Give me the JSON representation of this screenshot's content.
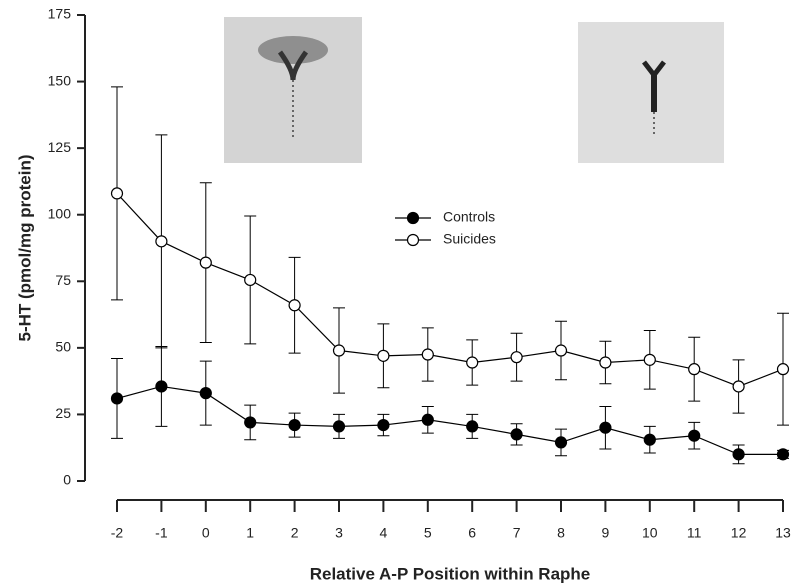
{
  "chart_data": {
    "type": "line",
    "x_label": "Relative A-P Position within Raphe",
    "y_label": "5-HT (pmol/mg protein)",
    "x": [
      -2,
      -1,
      0,
      1,
      2,
      3,
      4,
      5,
      6,
      7,
      8,
      9,
      10,
      11,
      12,
      13
    ],
    "xlim": [
      -2,
      13
    ],
    "xticks": [
      -2,
      -1,
      0,
      1,
      2,
      3,
      4,
      5,
      6,
      7,
      8,
      9,
      10,
      11,
      12,
      13
    ],
    "ylim": [
      0,
      175
    ],
    "yticks": [
      0,
      25,
      50,
      75,
      100,
      125,
      150,
      175
    ],
    "legend": "upper center",
    "series": [
      {
        "name": "Controls",
        "color": "#000000",
        "marker_fill": "#000000",
        "values": [
          31,
          35.5,
          33,
          22,
          21,
          20.5,
          21,
          23,
          20.5,
          17.5,
          14.5,
          20,
          15.5,
          17,
          10,
          10
        ],
        "errors": [
          15,
          15,
          12,
          6.5,
          4.5,
          4.5,
          4,
          5,
          4.5,
          4,
          5,
          8,
          5,
          5,
          3.5,
          1.5
        ]
      },
      {
        "name": "Suicides",
        "color": "#000000",
        "marker_fill": "#ffffff",
        "values": [
          108,
          90,
          82,
          75.5,
          66,
          49,
          47,
          47.5,
          44.5,
          46.5,
          49,
          44.5,
          45.5,
          42,
          35.5,
          42
        ],
        "errors": [
          40,
          40,
          30,
          24,
          18,
          16,
          12,
          10,
          8.5,
          9,
          11,
          8,
          11,
          12,
          10,
          21
        ]
      }
    ]
  }
}
